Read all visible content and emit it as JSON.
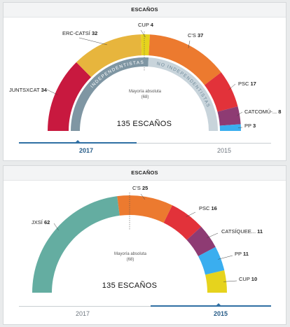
{
  "colors": {
    "JUNTSXCAT": "#c8193f",
    "ERC-CATSÍ": "#e7b53d",
    "CUP": "#e6d31d",
    "C'S": "#ec7a2f",
    "PSC": "#e2323a",
    "CATCOMÚ-...": "#8e3b73",
    "PP": "#3aaeef",
    "JXSÍ": "#64ada1",
    "CATSÍQUEE...": "#8e3b73",
    "tab_active": "#2f6fa3",
    "independentistas_band": "#7f96a3",
    "no_independentistas_band": "#c8d4db"
  },
  "charts": [
    {
      "header": "ESCAÑOS",
      "total_label": "135 ESCAÑOS",
      "majority_label": "Mayoría absoluta",
      "majority_value": "(68)",
      "bloc_left": "INDEPENDENTISTAS",
      "bloc_right": "NO INDEPENDENTISTAS",
      "tabs": [
        {
          "label": "2017",
          "active": true
        },
        {
          "label": "2015",
          "active": false
        }
      ]
    },
    {
      "header": "ESCAÑOS",
      "total_label": "135 ESCAÑOS",
      "majority_label": "Mayoría absoluta",
      "majority_value": "(68)",
      "tabs": [
        {
          "label": "2017",
          "active": false
        },
        {
          "label": "2015",
          "active": true
        }
      ]
    }
  ],
  "chart_data": [
    {
      "type": "pie",
      "title": "ESCAÑOS",
      "total": 135,
      "majority": 68,
      "series": [
        {
          "name": "JUNTSXCAT",
          "value": 34
        },
        {
          "name": "ERC-CATSÍ",
          "value": 32
        },
        {
          "name": "CUP",
          "value": 4
        },
        {
          "name": "C'S",
          "value": 37
        },
        {
          "name": "PSC",
          "value": 17
        },
        {
          "name": "CATCOMÚ-...",
          "value": 8
        },
        {
          "name": "PP",
          "value": 3
        }
      ],
      "blocs": [
        {
          "name": "INDEPENDENTISTAS",
          "value": 70
        },
        {
          "name": "NO INDEPENDENTISTAS",
          "value": 65
        }
      ]
    },
    {
      "type": "pie",
      "title": "ESCAÑOS",
      "total": 135,
      "majority": 68,
      "series": [
        {
          "name": "JXSÍ",
          "value": 62
        },
        {
          "name": "C'S",
          "value": 25
        },
        {
          "name": "PSC",
          "value": 16
        },
        {
          "name": "CATSÍQUEE...",
          "value": 11
        },
        {
          "name": "PP",
          "value": 11
        },
        {
          "name": "CUP",
          "value": 10
        }
      ]
    }
  ]
}
